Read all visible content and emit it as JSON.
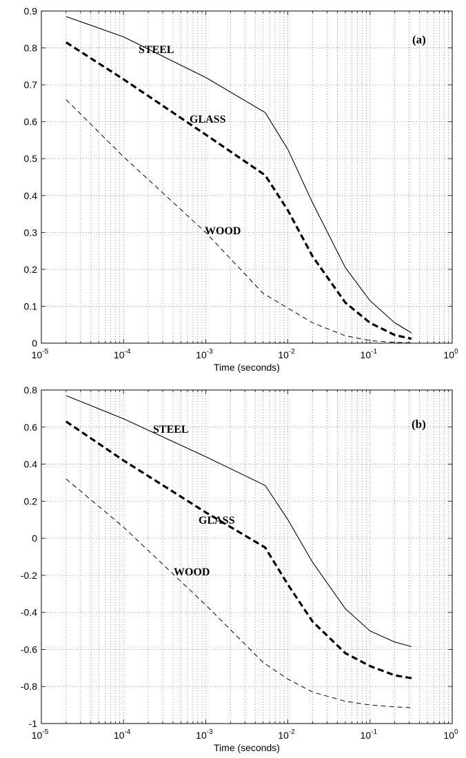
{
  "chart_data": [
    {
      "type": "line",
      "panel_label": "(a)",
      "xlabel": "Time (seconds)",
      "ylabel": "",
      "xscale": "log",
      "xlim": [
        1e-05,
        1
      ],
      "ylim": [
        0,
        0.9
      ],
      "x_tick_labels": [
        "10-5",
        "10-4",
        "10-3",
        "10-2",
        "10-1",
        "100"
      ],
      "y_tick_values": [
        0,
        0.1,
        0.2,
        0.3,
        0.4,
        0.5,
        0.6,
        0.7,
        0.8,
        0.9
      ],
      "y_tick_labels": [
        "0",
        "0.1",
        "0.2",
        "0.3",
        "0.4",
        "0.5",
        "0.6",
        "0.7",
        "0.8",
        "0.9"
      ],
      "grid": true,
      "series": [
        {
          "name": "STEEL",
          "style": "solid-thin",
          "x": [
            2e-05,
            0.0001,
            0.001,
            0.0053,
            0.01,
            0.02,
            0.05,
            0.1,
            0.2,
            0.32
          ],
          "y": [
            0.885,
            0.83,
            0.72,
            0.625,
            0.525,
            0.38,
            0.205,
            0.115,
            0.055,
            0.028
          ]
        },
        {
          "name": "GLASS",
          "style": "dashed-thick",
          "x": [
            2e-05,
            0.0001,
            0.001,
            0.0053,
            0.01,
            0.02,
            0.05,
            0.1,
            0.2,
            0.32
          ],
          "y": [
            0.815,
            0.715,
            0.565,
            0.455,
            0.36,
            0.235,
            0.11,
            0.055,
            0.022,
            0.012
          ]
        },
        {
          "name": "WOOD",
          "style": "dashed-thin",
          "x": [
            2e-05,
            0.0001,
            0.001,
            0.005,
            0.01,
            0.02,
            0.05,
            0.1,
            0.2,
            0.32
          ],
          "y": [
            0.66,
            0.505,
            0.3,
            0.135,
            0.095,
            0.055,
            0.02,
            0.007,
            0.002,
            0.001
          ]
        }
      ]
    },
    {
      "type": "line",
      "panel_label": "(b)",
      "xlabel": "Time (seconds)",
      "ylabel": "",
      "xscale": "log",
      "xlim": [
        1e-05,
        1
      ],
      "ylim": [
        -1,
        0.8
      ],
      "x_tick_labels": [
        "10-5",
        "10-4",
        "10-3",
        "10-2",
        "10-1",
        "100"
      ],
      "y_tick_values": [
        -1,
        -0.8,
        -0.6,
        -0.4,
        -0.2,
        0,
        0.2,
        0.4,
        0.6,
        0.8
      ],
      "y_tick_labels": [
        "-1",
        "-0.8",
        "-0.6",
        "-0.4",
        "-0.2",
        "0",
        "0.2",
        "0.4",
        "0.6",
        "0.8"
      ],
      "grid": true,
      "series": [
        {
          "name": "STEEL",
          "style": "solid-thin",
          "x": [
            2e-05,
            0.0001,
            0.001,
            0.0053,
            0.01,
            0.02,
            0.05,
            0.1,
            0.2,
            0.32
          ],
          "y": [
            0.77,
            0.645,
            0.44,
            0.285,
            0.1,
            -0.13,
            -0.38,
            -0.5,
            -0.56,
            -0.585
          ]
        },
        {
          "name": "GLASS",
          "style": "dashed-thick",
          "x": [
            2e-05,
            0.0001,
            0.001,
            0.0053,
            0.01,
            0.02,
            0.05,
            0.1,
            0.2,
            0.32
          ],
          "y": [
            0.63,
            0.42,
            0.14,
            -0.05,
            -0.25,
            -0.45,
            -0.62,
            -0.69,
            -0.74,
            -0.755
          ]
        },
        {
          "name": "WOOD",
          "style": "dashed-thin",
          "x": [
            2e-05,
            0.0001,
            0.001,
            0.005,
            0.01,
            0.02,
            0.05,
            0.1,
            0.2,
            0.32
          ],
          "y": [
            0.32,
            0.06,
            -0.36,
            -0.67,
            -0.76,
            -0.83,
            -0.88,
            -0.9,
            -0.91,
            -0.915
          ]
        }
      ]
    }
  ],
  "labels": {
    "a": {
      "steel": "STEEL",
      "glass": "GLASS",
      "wood": "WOOD"
    },
    "b": {
      "steel": "STEEL",
      "glass": "GLASS",
      "wood": "WOOD"
    }
  }
}
